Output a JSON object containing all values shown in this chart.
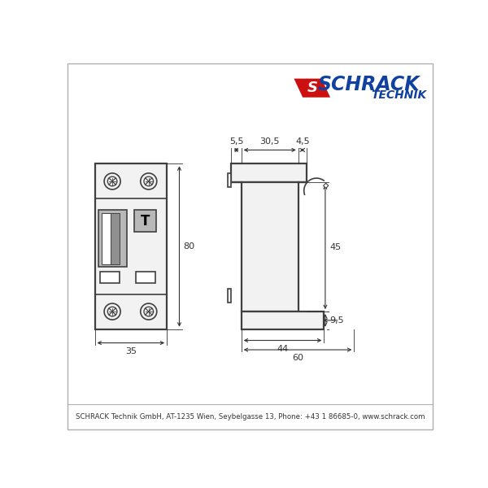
{
  "bg_color": "#ffffff",
  "border_color": "#b0b0b0",
  "line_color": "#404040",
  "gray_fill": "#b8b8b8",
  "light_fill": "#f2f2f2",
  "logo_blue": "#1040a0",
  "logo_red": "#cc1010",
  "footer_text": "SCHRACK Technik GmbH, AT-1235 Wien, Seybelgasse 13, Phone: +43 1 86685-0, www.schrack.com",
  "dim_55": "5,5",
  "dim_305": "30,5",
  "dim_45t": "4,5",
  "dim_80": "80",
  "dim_35": "35",
  "dim_44": "44",
  "dim_60": "60",
  "dim_45": "45",
  "dim_95": "9,5"
}
